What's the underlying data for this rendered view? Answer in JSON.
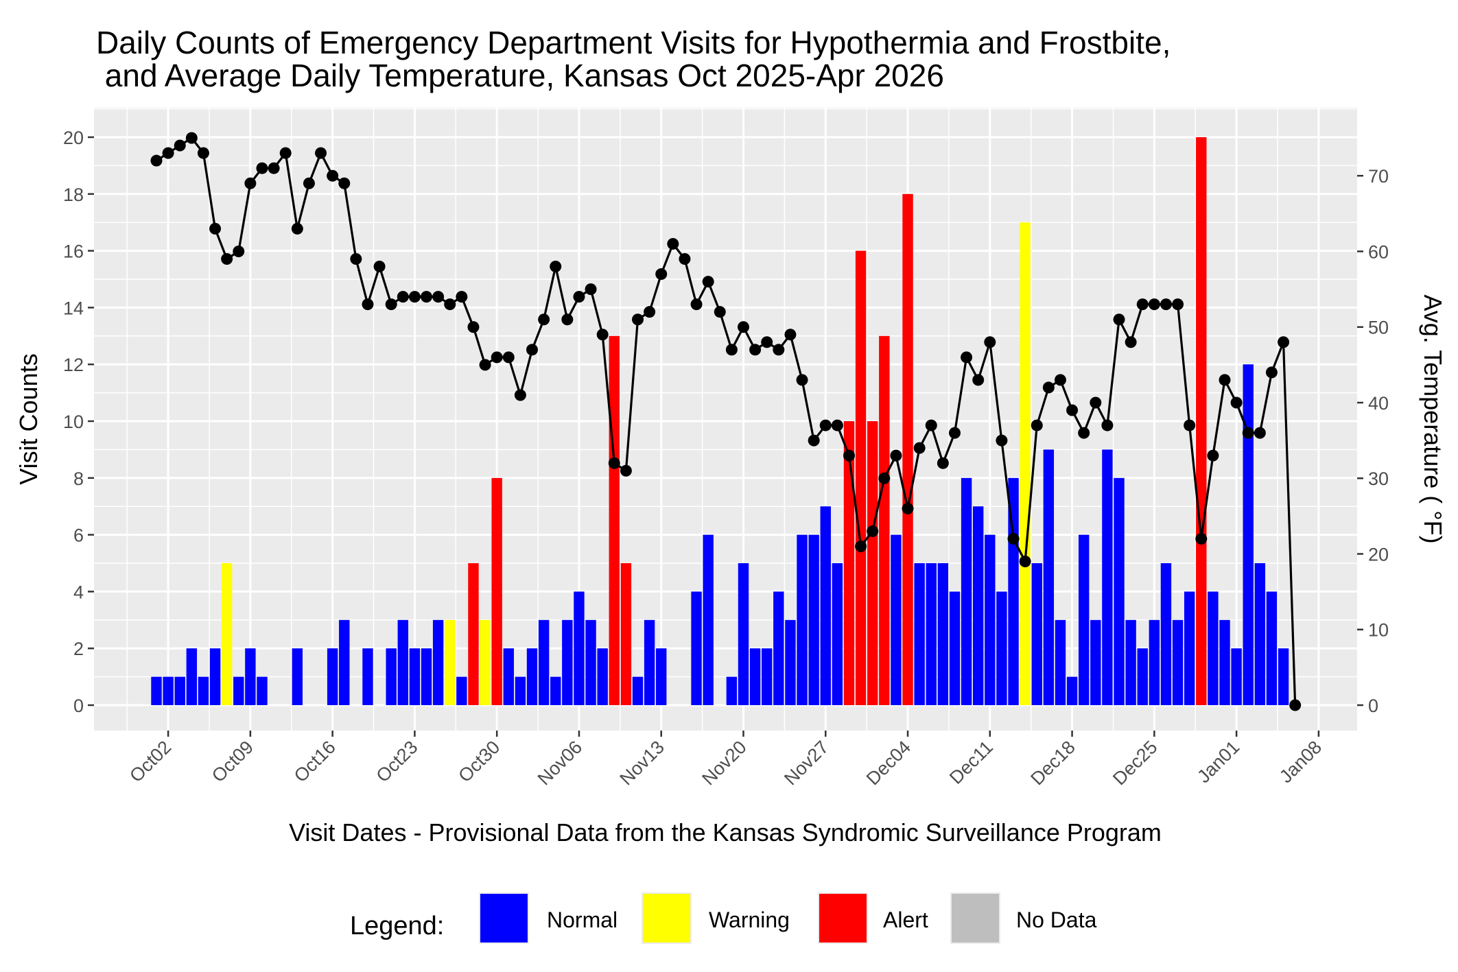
{
  "chart_data": {
    "type": "bar",
    "title_lines": [
      "Daily Counts of Emergency Department Visits for Hypothermia and Frostbite,",
      " and Average Daily Temperature, Kansas Oct 2025-Apr 2026"
    ],
    "xlabel": "Visit Dates - Provisional Data from the Kansas Syndromic Surveillance Program",
    "ylabel": "Visit Counts",
    "y2label": "Avg. Temperature ( °F)",
    "ylim": [
      -0.9,
      21.04
    ],
    "y_ticks": [
      0,
      2,
      4,
      6,
      8,
      10,
      12,
      14,
      16,
      18,
      20
    ],
    "y2_ticks": [
      0,
      10,
      20,
      30,
      40,
      50,
      60,
      70
    ],
    "y2_per_count": 3.755,
    "grid": true,
    "x_start_date": "2025-10-01",
    "x_range_days": [
      -0.5,
      106.9
    ],
    "x_ticks": [
      {
        "label": "Oct02",
        "day": 2
      },
      {
        "label": "Oct09",
        "day": 9
      },
      {
        "label": "Oct16",
        "day": 16
      },
      {
        "label": "Oct23",
        "day": 23
      },
      {
        "label": "Oct30",
        "day": 30
      },
      {
        "label": "Nov06",
        "day": 37
      },
      {
        "label": "Nov13",
        "day": 44
      },
      {
        "label": "Nov20",
        "day": 51
      },
      {
        "label": "Nov27",
        "day": 58
      },
      {
        "label": "Dec04",
        "day": 65
      },
      {
        "label": "Dec11",
        "day": 72
      },
      {
        "label": "Dec18",
        "day": 79
      },
      {
        "label": "Dec25",
        "day": 86
      },
      {
        "label": "Jan01",
        "day": 93
      },
      {
        "label": "Jan08",
        "day": 100
      }
    ],
    "status_colors": {
      "N": "#0000FF",
      "W": "#FFFF00",
      "A": "#FF0000",
      "X": "#BEBEBE"
    },
    "series": [
      {
        "name": "Visit Counts",
        "type": "bar",
        "values": [
          1,
          1,
          1,
          2,
          1,
          2,
          5,
          1,
          2,
          1,
          0,
          0,
          2,
          0,
          0,
          2,
          3,
          0,
          2,
          0,
          2,
          3,
          2,
          2,
          3,
          3,
          1,
          5,
          3,
          8,
          2,
          1,
          2,
          3,
          1,
          3,
          4,
          3,
          2,
          13,
          5,
          1,
          3,
          2,
          0,
          0,
          4,
          6,
          0,
          1,
          5,
          2,
          2,
          4,
          3,
          6,
          6,
          7,
          5,
          10,
          16,
          10,
          13,
          6,
          18,
          5,
          5,
          5,
          4,
          8,
          7,
          6,
          4,
          8,
          17,
          5,
          9,
          3,
          1,
          6,
          3,
          9,
          8,
          3,
          2,
          3,
          5,
          3,
          4,
          20,
          4,
          3,
          2,
          12,
          5,
          4,
          2,
          0
        ],
        "status": [
          "N",
          "N",
          "N",
          "N",
          "N",
          "N",
          "W",
          "N",
          "N",
          "N",
          "N",
          "N",
          "N",
          "N",
          "N",
          "N",
          "N",
          "N",
          "N",
          "N",
          "N",
          "N",
          "N",
          "N",
          "N",
          "W",
          "N",
          "A",
          "W",
          "A",
          "N",
          "N",
          "N",
          "N",
          "N",
          "N",
          "N",
          "N",
          "N",
          "A",
          "A",
          "N",
          "N",
          "N",
          "N",
          "N",
          "N",
          "N",
          "N",
          "N",
          "N",
          "N",
          "N",
          "N",
          "N",
          "N",
          "N",
          "N",
          "N",
          "A",
          "A",
          "A",
          "A",
          "N",
          "A",
          "N",
          "N",
          "N",
          "N",
          "N",
          "N",
          "N",
          "N",
          "N",
          "W",
          "N",
          "N",
          "N",
          "N",
          "N",
          "N",
          "N",
          "N",
          "N",
          "N",
          "N",
          "N",
          "N",
          "N",
          "A",
          "N",
          "N",
          "N",
          "N",
          "N",
          "N",
          "N",
          "N"
        ]
      },
      {
        "name": "Avg. Temperature",
        "type": "line",
        "values": [
          72,
          73,
          74,
          75,
          73,
          63,
          59,
          60,
          69,
          71,
          71,
          73,
          63,
          69,
          73,
          70,
          69,
          59,
          53,
          58,
          53,
          54,
          54,
          54,
          54,
          53,
          54,
          50,
          45,
          46,
          46,
          41,
          47,
          51,
          58,
          51,
          54,
          55,
          49,
          32,
          31,
          51,
          52,
          57,
          61,
          59,
          53,
          56,
          52,
          47,
          50,
          47,
          48,
          47,
          49,
          43,
          35,
          37,
          37,
          33,
          21,
          23,
          30,
          33,
          26,
          34,
          37,
          32,
          36,
          46,
          43,
          48,
          35,
          22,
          19,
          37,
          42,
          43,
          39,
          36,
          40,
          37,
          51,
          48,
          53,
          53,
          53,
          53,
          37,
          22,
          33,
          43,
          40,
          36,
          36,
          44,
          48,
          0
        ]
      }
    ],
    "legend": {
      "title": "Legend:",
      "position": "bottom",
      "items": [
        {
          "label": "Normal",
          "color": "#0000FF"
        },
        {
          "label": "Warning",
          "color": "#FFFF00"
        },
        {
          "label": "Alert",
          "color": "#FF0000"
        },
        {
          "label": "No Data",
          "color": "#BEBEBE"
        }
      ]
    }
  }
}
